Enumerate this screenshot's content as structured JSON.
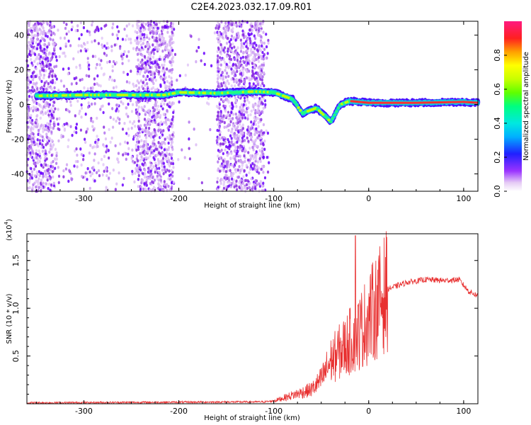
{
  "page_title": "C2E4.2023.032.17.09.R01",
  "chart_data": [
    {
      "type": "heatmap",
      "title": "C2E4.2023.032.17.09.R01",
      "xlabel": "Height of straight line (km)",
      "ylabel": "Frequency (Hz)",
      "xlim": [
        -360,
        115
      ],
      "ylim": [
        -50,
        48
      ],
      "x_ticks": [
        -300,
        -200,
        -100,
        0,
        100
      ],
      "y_ticks": [
        -40,
        -20,
        0,
        20,
        40
      ],
      "colorbar": {
        "label": "Normalized spectral amplitude",
        "range": [
          0,
          1
        ],
        "ticks": [
          "0.0",
          "0.2",
          "0.4",
          "0.6",
          "0.8"
        ]
      },
      "frequency_track": [
        {
          "x": -350,
          "f": 5
        },
        {
          "x": -300,
          "f": 5.5
        },
        {
          "x": -250,
          "f": 5.5
        },
        {
          "x": -215,
          "f": 5.5
        },
        {
          "x": -200,
          "f": 7
        },
        {
          "x": -160,
          "f": 6.5
        },
        {
          "x": -120,
          "f": 7.5
        },
        {
          "x": -100,
          "f": 7
        },
        {
          "x": -80,
          "f": 3
        },
        {
          "x": -70,
          "f": -5
        },
        {
          "x": -55,
          "f": -2
        },
        {
          "x": -40,
          "f": -10
        },
        {
          "x": -30,
          "f": 0
        },
        {
          "x": -20,
          "f": 2
        },
        {
          "x": 0,
          "f": 1
        },
        {
          "x": 50,
          "f": 1
        },
        {
          "x": 100,
          "f": 1.5
        },
        {
          "x": 115,
          "f": 1
        }
      ]
    },
    {
      "type": "line",
      "xlabel": "Height of straight line (km)",
      "ylabel": "SNR (10 * v/v)",
      "y_multiplier_label": "(x10",
      "y_multiplier_exp": "4",
      "y_multiplier_close": ")",
      "xlim": [
        -360,
        115
      ],
      "ylim": [
        0,
        1.78
      ],
      "x_ticks": [
        -300,
        -200,
        -100,
        0,
        100
      ],
      "y_ticks": [
        0.5,
        1.0,
        1.5
      ],
      "y_tick_labels": [
        "0.5",
        "1.0",
        "1.5"
      ],
      "series_color": "#e83030",
      "envelope": [
        {
          "x": -360,
          "y": 0.01
        },
        {
          "x": -110,
          "y": 0.02
        },
        {
          "x": -100,
          "y": 0.03
        },
        {
          "x": -90,
          "y": 0.06
        },
        {
          "x": -70,
          "y": 0.12
        },
        {
          "x": -60,
          "y": 0.15
        },
        {
          "x": -50,
          "y": 0.25
        },
        {
          "x": -40,
          "y": 0.45
        },
        {
          "x": -30,
          "y": 0.55
        },
        {
          "x": -20,
          "y": 0.65
        },
        {
          "x": -10,
          "y": 0.75
        },
        {
          "x": 0,
          "y": 0.9
        },
        {
          "x": 10,
          "y": 1.05
        },
        {
          "x": 20,
          "y": 1.2
        },
        {
          "x": 40,
          "y": 1.27
        },
        {
          "x": 60,
          "y": 1.3
        },
        {
          "x": 80,
          "y": 1.29
        },
        {
          "x": 95,
          "y": 1.3
        },
        {
          "x": 105,
          "y": 1.18
        },
        {
          "x": 115,
          "y": 1.13
        }
      ],
      "spike": {
        "x": -14,
        "y": 1.76
      }
    }
  ]
}
